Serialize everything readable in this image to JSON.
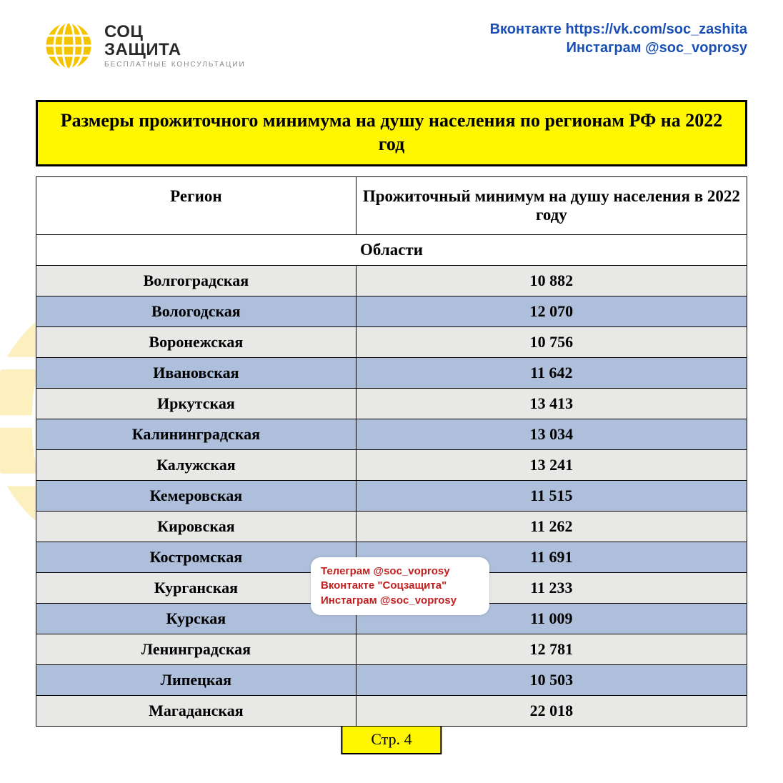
{
  "logo": {
    "line1": "СОЦ",
    "line2": "ЗАЩИТА",
    "sub": "БЕСПЛАТНЫЕ\nКОНСУЛЬТАЦИИ",
    "globe_color": "#f5c400",
    "globe_color_light": "#ffe873"
  },
  "social": {
    "line1": "Вконтакте https://vk.com/soc_zashita",
    "line2": "Инстаграм @soc_voprosy"
  },
  "title": "Размеры прожиточного минимума на душу населения по регионам РФ на 2022 год",
  "table": {
    "type": "table",
    "columns": [
      "Регион",
      "Прожиточный минимум на душу населения в 2022 году"
    ],
    "section_label": "Области",
    "rows": [
      {
        "region": "Волгоградская",
        "value": "10 882"
      },
      {
        "region": "Вологодская",
        "value": "12 070"
      },
      {
        "region": "Воронежская",
        "value": "10 756"
      },
      {
        "region": "Ивановская",
        "value": "11 642"
      },
      {
        "region": "Иркутская",
        "value": "13 413"
      },
      {
        "region": "Калининградская",
        "value": "13 034"
      },
      {
        "region": "Калужская",
        "value": "13 241"
      },
      {
        "region": "Кемеровская",
        "value": "11 515"
      },
      {
        "region": "Кировская",
        "value": "11 262"
      },
      {
        "region": "Костромская",
        "value": "11 691"
      },
      {
        "region": "Курганская",
        "value": "11 233"
      },
      {
        "region": "Курская",
        "value": "11 009"
      },
      {
        "region": "Ленинградская",
        "value": "12 781"
      },
      {
        "region": "Липецкая",
        "value": "10 503"
      },
      {
        "region": "Магаданская",
        "value": "22 018"
      }
    ],
    "row_colors": {
      "even": "#aebfdb",
      "odd": "#e8e8e6"
    },
    "border_color": "#000000",
    "header_fontsize": 23,
    "cell_fontsize": 22
  },
  "watermark": {
    "line1": "СОЦ",
    "line2": "ЗАЩИТА",
    "color": "#d7d7d7"
  },
  "callout": {
    "line1": "Телеграм @soc_voprosy",
    "line2": "Вконтакте \"Соцзащита\"",
    "line3": "Инстаграм @soc_voprosy",
    "color": "#c02020"
  },
  "page_label": "Стр. 4",
  "colors": {
    "title_bg": "#fff700",
    "title_border": "#000000",
    "social_text": "#1a4fb5"
  }
}
